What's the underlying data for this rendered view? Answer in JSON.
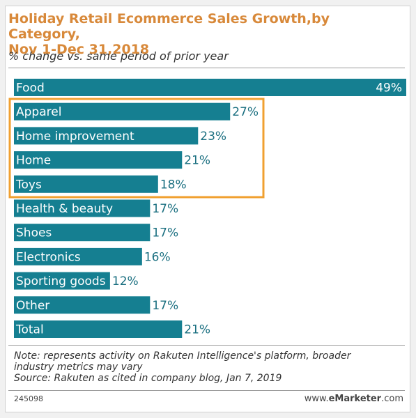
{
  "header": {
    "title_line1": "Holiday Retail Ecommerce Sales Growth,by Category,",
    "title_line2": "Nov 1-Dec 31,2018",
    "subtitle": "% change vs. same period of prior year"
  },
  "chart_data": {
    "type": "bar",
    "orientation": "horizontal",
    "categories": [
      "Food",
      "Apparel",
      "Home improvement",
      "Home",
      "Toys",
      "Health & beauty",
      "Shoes",
      "Electronics",
      "Sporting goods",
      "Other",
      "Total"
    ],
    "values": [
      49,
      27,
      23,
      21,
      18,
      17,
      17,
      16,
      12,
      17,
      21
    ],
    "value_labels": [
      "49%",
      "27%",
      "23%",
      "21%",
      "18%",
      "17%",
      "17%",
      "16%",
      "12%",
      "17%",
      "21%"
    ],
    "xlim": [
      0,
      49
    ],
    "highlighted_categories": [
      "Apparel",
      "Home improvement",
      "Home",
      "Toys"
    ],
    "grid": false,
    "legend": "none"
  },
  "footer": {
    "note_line1": "Note: represents activity on Rakuten Intelligence's platform, broader",
    "note_line2": "industry metrics may vary",
    "source": "Source: Rakuten as cited in company blog, Jan 7, 2019",
    "chart_id": "245098",
    "brand_prefix": "www.",
    "brand_bold": "eMarketer",
    "brand_suffix": ".com"
  },
  "colors": {
    "bar": "#157f91",
    "title": "#d8893a",
    "highlight": "#f0a030",
    "value_text": "#1a6f80"
  }
}
